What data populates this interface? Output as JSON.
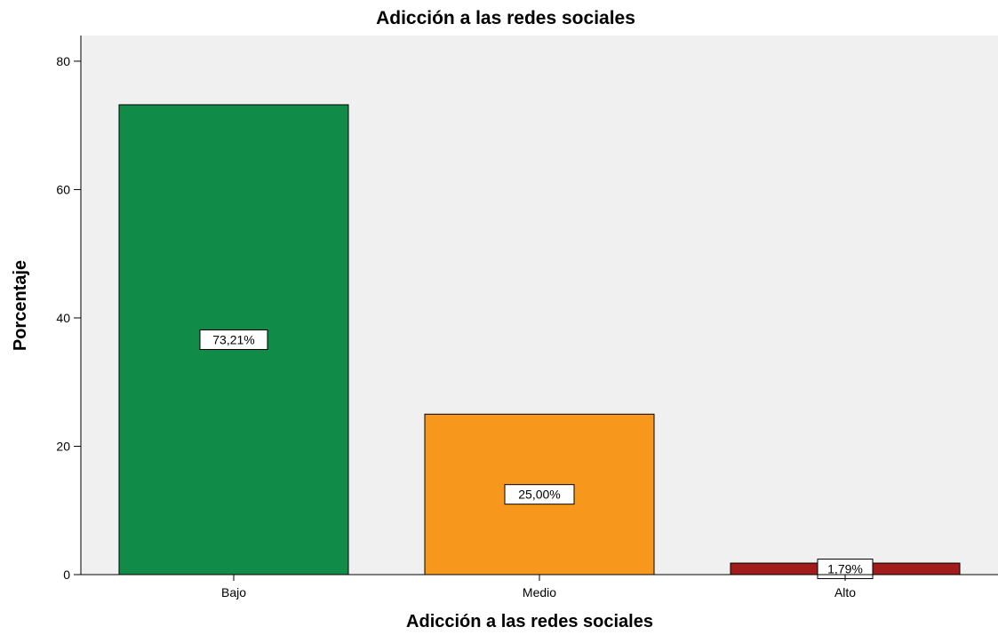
{
  "chart_data": {
    "type": "bar",
    "title": "Adicción a las redes sociales",
    "xlabel": "Adicción a las redes sociales",
    "ylabel": "Porcentaje",
    "categories": [
      "Bajo",
      "Medio",
      "Alto"
    ],
    "values": [
      73.21,
      25.0,
      1.79
    ],
    "data_labels": [
      "73,21%",
      "25,00%",
      "1,79%"
    ],
    "colors": [
      "#108b48",
      "#f7981d",
      "#a31c1c"
    ],
    "ylim": [
      0,
      84
    ],
    "yticks": [
      0,
      20,
      40,
      60,
      80
    ],
    "ytick_labels": [
      "0",
      "20",
      "40",
      "60",
      "80"
    ],
    "plot_background": "#f0f0f0",
    "grid": false
  }
}
